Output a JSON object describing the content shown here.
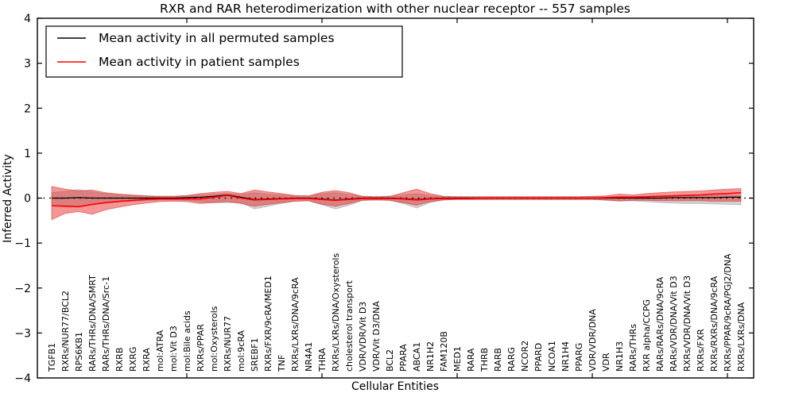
{
  "chart_data": {
    "type": "line",
    "title": "RXR and RAR heterodimerization with other nuclear receptor -- 557 samples",
    "xlabel": "Cellular Entities",
    "ylabel": "Inferred Activity",
    "ylim": [
      -4,
      4
    ],
    "yticks": [
      4,
      3,
      2,
      1,
      0,
      -1,
      -2,
      -3,
      -4
    ],
    "ytick_labels": [
      "4",
      "3",
      "2",
      "1",
      "0",
      "−1",
      "−2",
      "−3",
      "−4"
    ],
    "xtick_positions": [
      10,
      20,
      30,
      40,
      50
    ],
    "grid": false,
    "zero_line": true,
    "legend_position": "upper left",
    "categories": [
      "TGFB1",
      "RXRs/NUR77/BCL2",
      "RPS6KB1",
      "RARs/THRs/DNA/SMRT",
      "RARs/THRs/DNA/Src-1",
      "RXRB",
      "RXRG",
      "RXRA",
      "mol:ATRA",
      "mol:Vit D3",
      "mol:Bile acids",
      "RXRs/PPAR",
      "mol:Oxysterols",
      "RXRs/NUR77",
      "mol:9cRA",
      "SREBF1",
      "RXRs/FXR/9cRA/MED1",
      "TNF",
      "RXRs/LXRs/DNA/9cRA",
      "NR4A1",
      "THRA",
      "RXRs/LXRs/DNA/Oxysterols",
      "cholesterol transport",
      "VDR/VDR/Vit D3",
      "VDR/Vit D3/DNA",
      "BCL2",
      "PPARA",
      "ABCA1",
      "NR1H2",
      "FAM120B",
      "MED1",
      "RARA",
      "THRB",
      "RARB",
      "RARG",
      "NCOR2",
      "PPARD",
      "NCOA1",
      "NR1H4",
      "PPARG",
      "VDR/VDR/DNA",
      "VDR",
      "NR1H3",
      "RARs/THRs",
      "RXR alpha/CCPG",
      "RARs/RARs/DNA/9cRA",
      "RARs/VDR/DNA/Vit D3",
      "RXRs/VDR/DNA/Vit D3",
      "RXRs/FXR",
      "RXRs/RXRs/DNA/9cRA",
      "RXRs/PPAR/9cRA/PGJ2/DNA",
      "RXRs/LXRs/DNA"
    ],
    "series": [
      {
        "name": "Mean activity in all permuted samples",
        "color": "#000000",
        "values": [
          0.0,
          0.0,
          0.01,
          0.0,
          0.0,
          0.0,
          0.0,
          0.0,
          0.0,
          0.0,
          0.01,
          0.02,
          0.04,
          0.07,
          0.02,
          -0.03,
          -0.02,
          -0.01,
          0.0,
          0.0,
          -0.02,
          -0.04,
          -0.02,
          0.0,
          0.0,
          0.0,
          -0.01,
          -0.03,
          -0.01,
          0.0,
          0.0,
          0.0,
          0.0,
          0.0,
          0.0,
          0.0,
          0.0,
          0.0,
          0.0,
          0.0,
          0.0,
          0.0,
          0.0,
          0.0,
          0.0,
          0.0,
          0.01,
          0.01,
          0.01,
          0.01,
          0.02,
          0.02
        ]
      },
      {
        "name": "Mean activity in patient samples",
        "color": "#ff0000",
        "values": [
          -0.17,
          -0.18,
          -0.19,
          -0.14,
          -0.1,
          -0.07,
          -0.05,
          -0.03,
          -0.02,
          -0.02,
          -0.02,
          -0.02,
          0.02,
          0.06,
          0.0,
          -0.04,
          -0.03,
          -0.02,
          -0.01,
          -0.01,
          -0.03,
          -0.05,
          -0.03,
          -0.01,
          -0.01,
          -0.01,
          -0.02,
          -0.04,
          -0.02,
          -0.01,
          -0.01,
          -0.01,
          0.0,
          0.0,
          0.0,
          0.0,
          0.0,
          0.0,
          0.0,
          0.0,
          0.0,
          0.01,
          0.02,
          0.02,
          0.03,
          0.04,
          0.05,
          0.06,
          0.07,
          0.09,
          0.1,
          0.12
        ]
      }
    ],
    "bands": [
      {
        "name": "permuted samples range",
        "fill": "#9a9a9a",
        "fill_opacity": 0.45,
        "edge": "#8f8f8f",
        "edge_opacity": 0.5,
        "upper": [
          0.12,
          0.15,
          0.19,
          0.14,
          0.1,
          0.08,
          0.06,
          0.05,
          0.04,
          0.04,
          0.05,
          0.07,
          0.09,
          0.1,
          0.08,
          0.12,
          0.09,
          0.07,
          0.05,
          0.05,
          0.1,
          0.12,
          0.08,
          0.04,
          0.03,
          0.04,
          0.07,
          0.1,
          0.06,
          0.03,
          0.03,
          0.03,
          0.03,
          0.03,
          0.03,
          0.03,
          0.03,
          0.03,
          0.03,
          0.03,
          0.03,
          0.03,
          0.04,
          0.04,
          0.04,
          0.05,
          0.05,
          0.05,
          0.05,
          0.06,
          0.06,
          0.06
        ],
        "lower": [
          -0.13,
          -0.16,
          -0.2,
          -0.15,
          -0.11,
          -0.09,
          -0.07,
          -0.05,
          -0.04,
          -0.04,
          -0.05,
          -0.08,
          -0.1,
          -0.1,
          -0.1,
          -0.24,
          -0.18,
          -0.12,
          -0.07,
          -0.06,
          -0.15,
          -0.24,
          -0.16,
          -0.05,
          -0.04,
          -0.05,
          -0.12,
          -0.22,
          -0.1,
          -0.04,
          -0.03,
          -0.03,
          -0.03,
          -0.03,
          -0.03,
          -0.03,
          -0.03,
          -0.03,
          -0.03,
          -0.03,
          -0.03,
          -0.05,
          -0.07,
          -0.06,
          -0.08,
          -0.1,
          -0.11,
          -0.12,
          -0.12,
          -0.13,
          -0.14,
          -0.15
        ]
      },
      {
        "name": "patient samples range",
        "fill": "#e62e2e",
        "fill_opacity": 0.5,
        "edge": "#d42020",
        "edge_opacity": 0.55,
        "upper": [
          0.26,
          0.2,
          0.16,
          0.18,
          0.12,
          0.09,
          0.07,
          0.05,
          0.04,
          0.04,
          0.06,
          0.1,
          0.13,
          0.15,
          0.1,
          0.18,
          0.14,
          0.1,
          0.06,
          0.05,
          0.13,
          0.17,
          0.12,
          0.04,
          0.03,
          0.04,
          0.12,
          0.2,
          0.1,
          0.04,
          0.03,
          0.03,
          0.03,
          0.03,
          0.03,
          0.03,
          0.03,
          0.03,
          0.03,
          0.03,
          0.04,
          0.05,
          0.09,
          0.07,
          0.1,
          0.12,
          0.14,
          0.15,
          0.16,
          0.18,
          0.2,
          0.21
        ],
        "lower": [
          -0.48,
          -0.34,
          -0.3,
          -0.36,
          -0.26,
          -0.2,
          -0.15,
          -0.11,
          -0.08,
          -0.07,
          -0.08,
          -0.12,
          -0.1,
          -0.08,
          -0.12,
          -0.18,
          -0.14,
          -0.1,
          -0.07,
          -0.06,
          -0.14,
          -0.18,
          -0.12,
          -0.05,
          -0.04,
          -0.05,
          -0.1,
          -0.16,
          -0.08,
          -0.04,
          -0.03,
          -0.03,
          -0.03,
          -0.03,
          -0.03,
          -0.03,
          -0.03,
          -0.03,
          -0.03,
          -0.03,
          -0.03,
          -0.04,
          -0.06,
          -0.05,
          -0.05,
          -0.06,
          -0.06,
          -0.06,
          -0.06,
          -0.07,
          -0.07,
          -0.07
        ]
      }
    ]
  }
}
